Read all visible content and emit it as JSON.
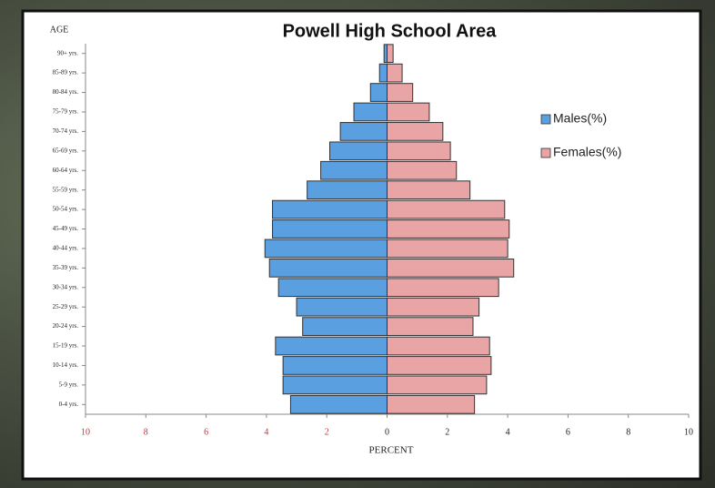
{
  "chart_data": {
    "type": "population-pyramid",
    "title": "Powell High School Area",
    "ylabel": "AGE",
    "xlabel": "PERCENT",
    "categories": [
      "90+ yrs.",
      "85-89 yrs.",
      "80-84 yrs.",
      "75-79 yrs.",
      "70-74 yrs.",
      "65-69 yrs.",
      "60-64 yrs.",
      "55-59 yrs.",
      "50-54 yrs.",
      "45-49 yrs.",
      "40-44 yrs.",
      "35-39 yrs.",
      "30-34 yrs.",
      "25-29 yrs.",
      "20-24 yrs.",
      "15-19 yrs.",
      "10-14 yrs.",
      "5-9 yrs.",
      "0-4 yrs."
    ],
    "series": [
      {
        "name": "Males(%)",
        "color": "#5a9fe0",
        "values": [
          -0.1,
          -0.25,
          -0.55,
          -1.1,
          -1.55,
          -1.9,
          -2.2,
          -2.65,
          -3.8,
          -3.8,
          -4.05,
          -3.9,
          -3.6,
          -3.0,
          -2.8,
          -3.7,
          -3.45,
          -3.45,
          -3.2
        ]
      },
      {
        "name": "Females(%)",
        "color": "#e9a5a5",
        "values": [
          0.2,
          0.5,
          0.85,
          1.4,
          1.85,
          2.1,
          2.3,
          2.75,
          3.9,
          4.05,
          4.0,
          4.2,
          3.7,
          3.05,
          2.85,
          3.4,
          3.45,
          3.3,
          2.9
        ]
      }
    ],
    "xlim": [
      -10,
      10
    ],
    "xticks": [
      {
        "value": -10,
        "label": "10"
      },
      {
        "value": -8,
        "label": "8"
      },
      {
        "value": -6,
        "label": "6"
      },
      {
        "value": -4,
        "label": "4"
      },
      {
        "value": -2,
        "label": "2"
      },
      0,
      2,
      4,
      6,
      8,
      10
    ],
    "legend": "upper right"
  }
}
